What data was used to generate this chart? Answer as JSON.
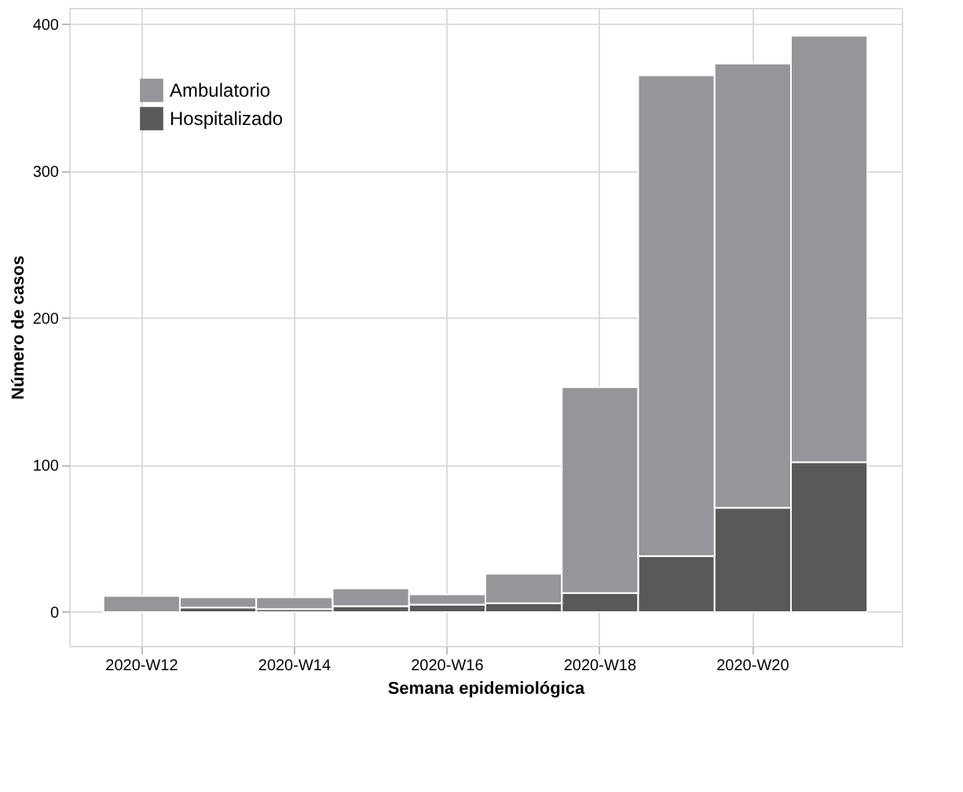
{
  "chart_data": {
    "type": "bar",
    "stacked": true,
    "xlabel": "Semana epidemiológica",
    "ylabel": "Número de casos",
    "categories": [
      "2020-W12",
      null,
      "2020-W14",
      null,
      "2020-W16",
      null,
      "2020-W18",
      null,
      "2020-W20",
      null
    ],
    "series": [
      {
        "name": "Hospitalizado",
        "color": "#58595b",
        "values": [
          0,
          3,
          2,
          4,
          5,
          6,
          13,
          38,
          71,
          102
        ]
      },
      {
        "name": "Ambulatorio",
        "color": "#95969a",
        "values": [
          11,
          7,
          8,
          12,
          7,
          20,
          140,
          327,
          302,
          290
        ]
      }
    ],
    "ylim": [
      -23,
      411
    ],
    "yticks": [
      0,
      100,
      200,
      300,
      400
    ],
    "grid": true,
    "legend": "top left"
  }
}
